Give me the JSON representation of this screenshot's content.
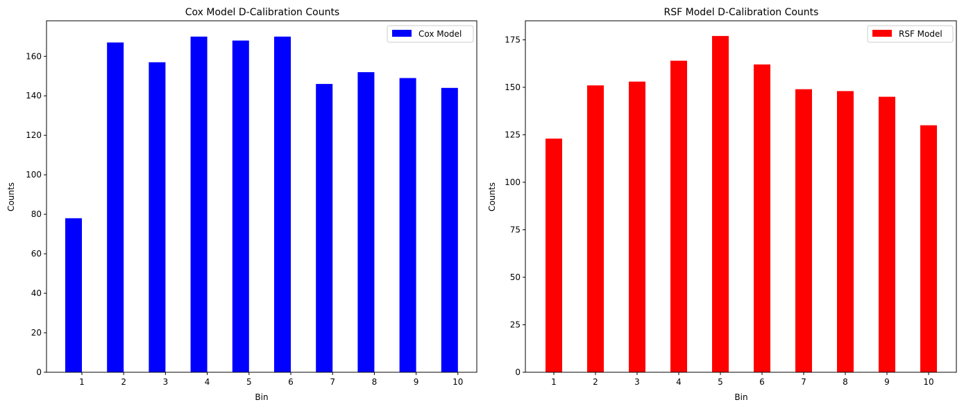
{
  "chart_data": [
    {
      "type": "bar",
      "title": "Cox Model D-Calibration Counts",
      "xlabel": "Bin",
      "ylabel": "Counts",
      "categories": [
        "1",
        "2",
        "3",
        "4",
        "5",
        "6",
        "7",
        "8",
        "9",
        "10"
      ],
      "series": [
        {
          "name": "Cox Model",
          "color": "#0000ff",
          "values": [
            78,
            167,
            157,
            170,
            168,
            170,
            146,
            152,
            149,
            144
          ]
        }
      ],
      "ylim": [
        0,
        178
      ],
      "yticks": [
        "0",
        "20",
        "40",
        "60",
        "80",
        "100",
        "120",
        "140",
        "160"
      ],
      "legend": "top-right",
      "grid": false
    },
    {
      "type": "bar",
      "title": "RSF Model D-Calibration Counts",
      "xlabel": "Bin",
      "ylabel": "Counts",
      "categories": [
        "1",
        "2",
        "3",
        "4",
        "5",
        "6",
        "7",
        "8",
        "9",
        "10"
      ],
      "series": [
        {
          "name": "RSF Model",
          "color": "#ff0000",
          "values": [
            123,
            151,
            153,
            164,
            177,
            162,
            149,
            148,
            145,
            130
          ]
        }
      ],
      "ylim": [
        0,
        185
      ],
      "yticks": [
        "0",
        "25",
        "50",
        "75",
        "100",
        "125",
        "150",
        "175"
      ],
      "legend": "top-right",
      "grid": false
    }
  ]
}
